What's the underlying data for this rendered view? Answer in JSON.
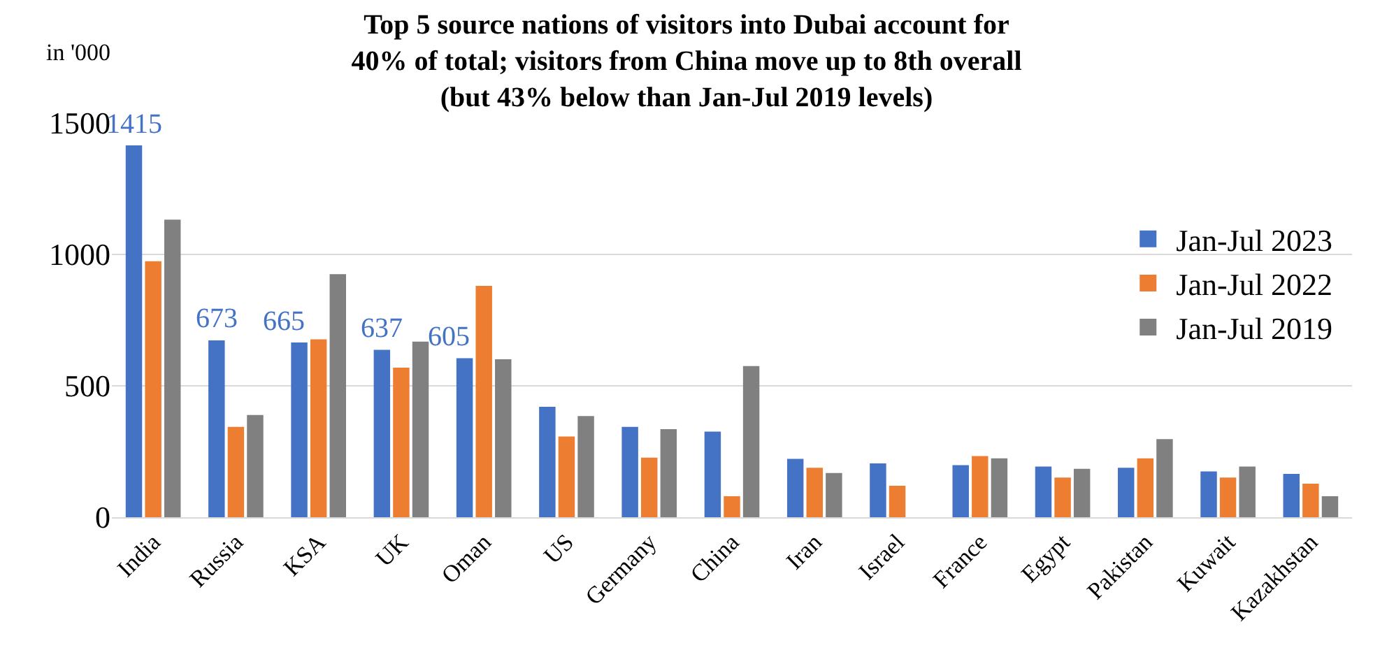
{
  "chart_data": {
    "type": "bar",
    "title": "Top 5 source nations of visitors into Dubai account for\n40% of total; visitors from China move up to 8th overall\n(but 43% below than Jan-Jul 2019 levels)",
    "ylabel": "in '000",
    "categories": [
      "India",
      "Russia",
      "KSA",
      "UK",
      "Oman",
      "US",
      "Germany",
      "China",
      "Iran",
      "Israel",
      "France",
      "Egypt",
      "Pakistan",
      "Kuwait",
      "Kazakhstan"
    ],
    "series": [
      {
        "name": "Jan-Jul 2023",
        "color": "#4472c4",
        "values": [
          1415,
          673,
          665,
          637,
          605,
          420,
          344,
          326,
          222,
          205,
          198,
          193,
          188,
          174,
          165
        ],
        "value_labels": [
          "1415",
          "673",
          "665",
          "637",
          "605",
          null,
          null,
          null,
          null,
          null,
          null,
          null,
          null,
          null,
          null
        ]
      },
      {
        "name": "Jan-Jul 2022",
        "color": "#ed7d31",
        "values": [
          974,
          344,
          677,
          569,
          880,
          307,
          227,
          80,
          188,
          120,
          233,
          151,
          224,
          151,
          128
        ]
      },
      {
        "name": "Jan-Jul 2019",
        "color": "#808080",
        "values": [
          1132,
          389,
          925,
          668,
          601,
          385,
          335,
          575,
          168,
          null,
          224,
          184,
          297,
          193,
          80
        ]
      }
    ],
    "ylim": [
      0,
      1500
    ],
    "yticks": [
      0,
      500,
      1000,
      1500
    ],
    "grid": "y",
    "legend": "top right"
  }
}
